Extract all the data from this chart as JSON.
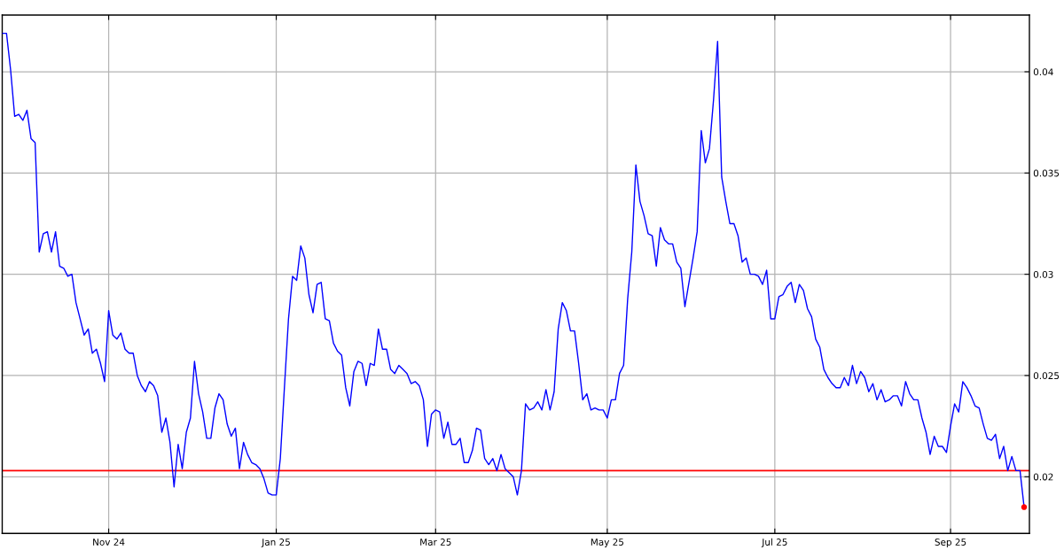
{
  "chart_data": {
    "type": "line",
    "categories": [
      null,
      null,
      null,
      null,
      null,
      null,
      null,
      null,
      null,
      null,
      null,
      null,
      null,
      null,
      null,
      null,
      null,
      null,
      null,
      null,
      null,
      null,
      null,
      null,
      null,
      null,
      "Nov 24",
      null,
      null,
      null,
      null,
      null,
      null,
      null,
      null,
      null,
      null,
      null,
      null,
      null,
      null,
      null,
      null,
      null,
      null,
      null,
      null,
      null,
      null,
      null,
      null,
      null,
      null,
      null,
      null,
      null,
      null,
      null,
      null,
      null,
      null,
      null,
      null,
      null,
      null,
      null,
      null,
      "Jan 25",
      null,
      null,
      null,
      null,
      null,
      null,
      null,
      null,
      null,
      null,
      null,
      null,
      null,
      null,
      null,
      null,
      null,
      null,
      null,
      null,
      null,
      null,
      null,
      null,
      null,
      null,
      null,
      null,
      null,
      null,
      null,
      null,
      null,
      null,
      null,
      null,
      null,
      null,
      "Mar 25",
      null,
      null,
      null,
      null,
      null,
      null,
      null,
      null,
      null,
      null,
      null,
      null,
      null,
      null,
      null,
      null,
      null,
      null,
      null,
      null,
      null,
      null,
      null,
      null,
      null,
      null,
      null,
      null,
      null,
      null,
      null,
      null,
      null,
      null,
      null,
      null,
      null,
      null,
      null,
      null,
      null,
      "May 25",
      null,
      null,
      null,
      null,
      null,
      null,
      null,
      null,
      null,
      null,
      null,
      null,
      null,
      null,
      null,
      null,
      null,
      null,
      null,
      null,
      null,
      null,
      null,
      null,
      null,
      null,
      null,
      null,
      null,
      null,
      null,
      null,
      null,
      null,
      null,
      null,
      null,
      null,
      null,
      null,
      "Jul 25",
      null,
      null,
      null,
      null,
      null,
      null,
      null,
      null,
      null,
      null,
      null,
      null,
      null,
      null,
      null,
      null,
      null,
      null,
      null,
      null,
      null,
      null,
      null,
      null,
      null,
      null,
      null,
      null,
      null,
      null,
      null,
      null,
      null,
      null,
      null,
      null,
      null,
      null,
      null,
      null,
      null,
      null,
      "Sep 25",
      null,
      null,
      null,
      null,
      null,
      null,
      null,
      null,
      null,
      null,
      null,
      null,
      null,
      null,
      null,
      null,
      null,
      null
    ],
    "series": [
      {
        "color": "#0000ff",
        "values": [
          0.0419,
          0.0419,
          0.0401,
          0.0378,
          0.0379,
          0.0376,
          0.0381,
          0.0367,
          0.0365,
          0.0311,
          0.032,
          0.0321,
          0.0311,
          0.0321,
          0.0304,
          0.0303,
          0.0299,
          0.03,
          0.0286,
          0.0278,
          0.027,
          0.0273,
          0.0261,
          0.0263,
          0.0256,
          0.0247,
          0.0282,
          0.027,
          0.0268,
          0.0271,
          0.0263,
          0.0261,
          0.0261,
          0.025,
          0.0245,
          0.0242,
          0.0247,
          0.0245,
          0.024,
          0.0222,
          0.0229,
          0.0217,
          0.0195,
          0.0216,
          0.0204,
          0.0222,
          0.0229,
          0.0257,
          0.0241,
          0.0232,
          0.0219,
          0.0219,
          0.0234,
          0.0241,
          0.0238,
          0.0226,
          0.022,
          0.0224,
          0.0204,
          0.0217,
          0.0211,
          0.0207,
          0.0206,
          0.0204,
          0.0199,
          0.0192,
          0.0191,
          0.0191,
          0.0209,
          0.0244,
          0.0278,
          0.0299,
          0.0297,
          0.0314,
          0.0308,
          0.029,
          0.0281,
          0.0295,
          0.0296,
          0.0278,
          0.0277,
          0.0266,
          0.0262,
          0.026,
          0.0244,
          0.0235,
          0.0252,
          0.0257,
          0.0256,
          0.0245,
          0.0256,
          0.0255,
          0.0273,
          0.0263,
          0.0263,
          0.0253,
          0.0251,
          0.0255,
          0.0253,
          0.0251,
          0.0246,
          0.0247,
          0.0245,
          0.0238,
          0.0215,
          0.0231,
          0.0233,
          0.0232,
          0.0219,
          0.0227,
          0.0216,
          0.0216,
          0.0219,
          0.0207,
          0.0207,
          0.0213,
          0.0224,
          0.0223,
          0.0209,
          0.0206,
          0.0209,
          0.0203,
          0.0211,
          0.0204,
          0.0202,
          0.02,
          0.0191,
          0.0203,
          0.0236,
          0.0233,
          0.0234,
          0.0237,
          0.0233,
          0.0243,
          0.0233,
          0.0242,
          0.0273,
          0.0286,
          0.0282,
          0.0272,
          0.0272,
          0.0256,
          0.0238,
          0.0241,
          0.0233,
          0.0234,
          0.0233,
          0.0233,
          0.0229,
          0.0238,
          0.0238,
          0.0251,
          0.0255,
          0.0288,
          0.0311,
          0.0354,
          0.0336,
          0.0329,
          0.032,
          0.0319,
          0.0304,
          0.0323,
          0.0317,
          0.0315,
          0.0315,
          0.0306,
          0.0303,
          0.0284,
          0.0296,
          0.0308,
          0.0321,
          0.0371,
          0.0355,
          0.0362,
          0.0386,
          0.0415,
          0.0348,
          0.0336,
          0.0325,
          0.0325,
          0.0319,
          0.0306,
          0.0308,
          0.03,
          0.03,
          0.0299,
          0.0295,
          0.0302,
          0.0278,
          0.0278,
          0.0289,
          0.029,
          0.0294,
          0.0296,
          0.0286,
          0.0295,
          0.0292,
          0.0283,
          0.0279,
          0.0268,
          0.0264,
          0.0253,
          0.0249,
          0.0246,
          0.0244,
          0.0244,
          0.0249,
          0.0245,
          0.0255,
          0.0246,
          0.0252,
          0.0249,
          0.0242,
          0.0246,
          0.0238,
          0.0243,
          0.0237,
          0.0238,
          0.024,
          0.024,
          0.0235,
          0.0247,
          0.0241,
          0.0238,
          0.0238,
          0.0229,
          0.0222,
          0.0211,
          0.022,
          0.0215,
          0.0215,
          0.0212,
          0.0225,
          0.0236,
          0.0232,
          0.0247,
          0.0244,
          0.024,
          0.0235,
          0.0234,
          0.0226,
          0.0219,
          0.0218,
          0.0221,
          0.0209,
          0.0215,
          0.0203,
          0.021,
          0.0203,
          0.0203,
          0.0185
        ]
      },
      {
        "type": "scatter",
        "color": "#ff0000",
        "marker": "circle",
        "values": [
          null,
          null,
          null,
          null,
          null,
          null,
          null,
          null,
          null,
          null,
          null,
          null,
          null,
          null,
          null,
          null,
          null,
          null,
          null,
          null,
          null,
          null,
          null,
          null,
          null,
          null,
          null,
          null,
          null,
          null,
          null,
          null,
          null,
          null,
          null,
          null,
          null,
          null,
          null,
          null,
          null,
          null,
          null,
          null,
          null,
          null,
          null,
          null,
          null,
          null,
          null,
          null,
          null,
          null,
          null,
          null,
          null,
          null,
          null,
          null,
          null,
          null,
          null,
          null,
          null,
          null,
          null,
          null,
          null,
          null,
          null,
          null,
          null,
          null,
          null,
          null,
          null,
          null,
          null,
          null,
          null,
          null,
          null,
          null,
          null,
          null,
          null,
          null,
          null,
          null,
          null,
          null,
          null,
          null,
          null,
          null,
          null,
          null,
          null,
          null,
          null,
          null,
          null,
          null,
          null,
          null,
          null,
          null,
          null,
          null,
          null,
          null,
          null,
          null,
          null,
          null,
          null,
          null,
          null,
          null,
          null,
          null,
          null,
          null,
          null,
          null,
          null,
          null,
          null,
          null,
          null,
          null,
          null,
          null,
          null,
          null,
          null,
          null,
          null,
          null,
          null,
          null,
          null,
          null,
          null,
          null,
          null,
          null,
          null,
          null,
          null,
          null,
          null,
          null,
          null,
          null,
          null,
          null,
          null,
          null,
          null,
          null,
          null,
          null,
          null,
          null,
          null,
          null,
          null,
          null,
          null,
          null,
          null,
          null,
          null,
          null,
          null,
          null,
          null,
          null,
          null,
          null,
          null,
          null,
          null,
          null,
          null,
          null,
          null,
          null,
          null,
          null,
          null,
          null,
          null,
          null,
          null,
          null,
          null,
          null,
          null,
          null,
          null,
          null,
          null,
          null,
          null,
          null,
          null,
          null,
          null,
          null,
          null,
          null,
          null,
          null,
          null,
          null,
          null,
          null,
          null,
          null,
          null,
          null,
          null,
          null,
          null,
          null,
          null,
          null,
          null,
          null,
          null,
          null,
          null,
          null,
          null,
          null,
          null,
          null,
          null,
          null,
          null,
          null,
          null,
          null,
          null,
          null,
          null,
          null,
          0.0185
        ]
      }
    ],
    "ylim": [
      0.0172,
      0.0428
    ],
    "yticks": [
      0.02,
      0.025,
      0.03,
      0.035,
      0.04
    ],
    "grid": true,
    "ref_lines": [
      {
        "axis": "y",
        "value": 0.0203,
        "color": "#ff0000"
      }
    ]
  }
}
